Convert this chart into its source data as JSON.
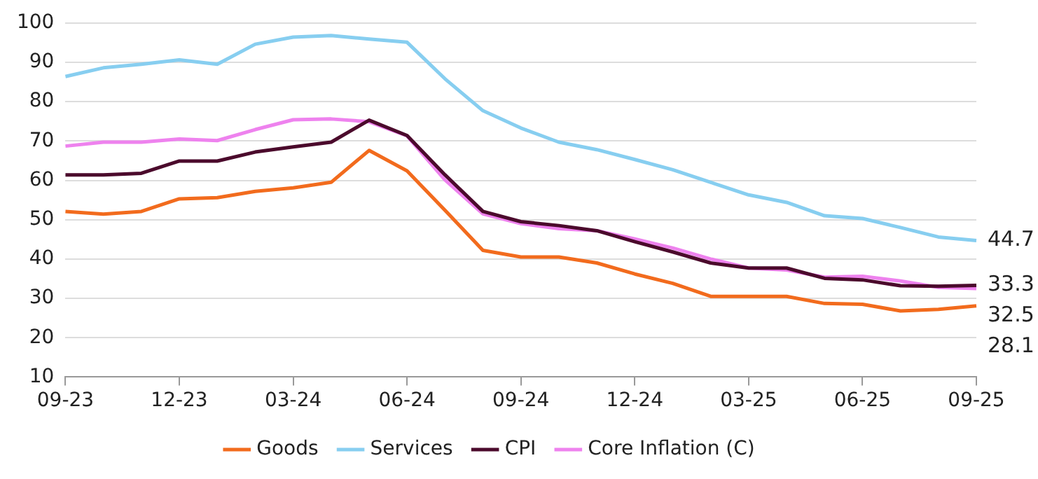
{
  "chart_data": {
    "type": "line",
    "categories": [
      "09-23",
      null,
      null,
      "12-23",
      null,
      null,
      "03-24",
      null,
      null,
      "06-24",
      null,
      null,
      "09-24",
      null,
      null,
      "12-24",
      null,
      null,
      "03-25",
      null,
      null,
      "06-25",
      null,
      null,
      "09-25"
    ],
    "series": [
      {
        "name": "Goods",
        "color": "#f26b1d",
        "values": [
          52.1,
          51.4,
          52.1,
          55.3,
          55.6,
          57.2,
          58.1,
          59.5,
          67.6,
          62.4,
          52.4,
          42.2,
          40.5,
          40.5,
          39.0,
          36.2,
          33.8,
          30.5,
          30.5,
          30.5,
          28.7,
          28.5,
          26.8,
          27.2,
          28.1
        ],
        "value_labels": [
          null,
          null,
          null,
          null,
          null,
          null,
          null,
          null,
          null,
          null,
          null,
          null,
          null,
          null,
          null,
          null,
          null,
          null,
          null,
          null,
          null,
          null,
          null,
          null,
          "28.1"
        ]
      },
      {
        "name": "Services",
        "color": "#87cef0",
        "values": [
          86.4,
          88.6,
          89.5,
          90.6,
          89.5,
          94.6,
          96.4,
          96.8,
          95.9,
          95.1,
          85.8,
          77.7,
          73.3,
          69.7,
          67.8,
          65.3,
          62.7,
          59.5,
          56.3,
          54.4,
          51.0,
          50.3,
          48.0,
          45.6,
          44.7
        ],
        "value_labels": [
          null,
          null,
          null,
          null,
          null,
          null,
          null,
          null,
          null,
          null,
          null,
          null,
          null,
          null,
          null,
          null,
          null,
          null,
          null,
          null,
          null,
          null,
          null,
          null,
          "44.7"
        ]
      },
      {
        "name": "CPI",
        "color": "#4b0a2c",
        "values": [
          61.4,
          61.4,
          61.8,
          64.9,
          64.9,
          67.2,
          68.5,
          69.7,
          75.3,
          71.4,
          61.4,
          52.1,
          49.5,
          48.5,
          47.2,
          44.4,
          41.8,
          39.0,
          37.7,
          37.7,
          35.1,
          34.7,
          33.2,
          33.1,
          33.3
        ],
        "value_labels": [
          null,
          null,
          null,
          null,
          null,
          null,
          null,
          null,
          null,
          null,
          null,
          null,
          null,
          null,
          null,
          null,
          null,
          null,
          null,
          null,
          null,
          null,
          null,
          null,
          "33.3"
        ]
      },
      {
        "name": "Core Inflation (C)",
        "color": "#ee82ee",
        "values": [
          68.7,
          69.7,
          69.7,
          70.5,
          70.1,
          72.9,
          75.4,
          75.6,
          74.9,
          71.3,
          60.1,
          51.5,
          49.0,
          47.7,
          47.2,
          45.1,
          42.8,
          40.0,
          37.7,
          37.2,
          35.4,
          35.6,
          34.4,
          32.8,
          32.5
        ],
        "value_labels": [
          null,
          null,
          null,
          null,
          null,
          null,
          null,
          null,
          null,
          null,
          null,
          null,
          null,
          null,
          null,
          null,
          null,
          null,
          null,
          null,
          null,
          null,
          null,
          null,
          "32.5"
        ]
      }
    ],
    "ylim": [
      10,
      100
    ],
    "yticks": [
      10,
      20,
      30,
      40,
      50,
      60,
      70,
      80,
      90,
      100
    ],
    "grid": "y",
    "legend": "bottom",
    "marker": "none",
    "line_style": "solid"
  }
}
